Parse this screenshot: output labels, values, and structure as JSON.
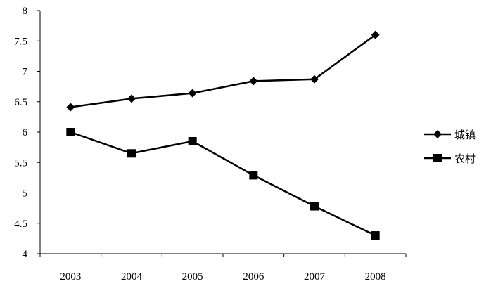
{
  "chart_data": {
    "type": "line",
    "title": "",
    "xlabel": "",
    "ylabel": "",
    "categories": [
      "2003",
      "2004",
      "2005",
      "2006",
      "2007",
      "2008"
    ],
    "ylim": [
      4,
      8
    ],
    "yticks": [
      "4",
      "4.5",
      "5",
      "5.5",
      "6",
      "6.5",
      "7",
      "7.5",
      "8"
    ],
    "grid": false,
    "legend_position": "right",
    "series": [
      {
        "name": "城镇",
        "marker": "diamond",
        "color": "#000000",
        "values": [
          6.41,
          6.55,
          6.64,
          6.84,
          6.87,
          7.6
        ]
      },
      {
        "name": "农村",
        "marker": "square",
        "color": "#000000",
        "values": [
          6.0,
          5.65,
          5.85,
          5.29,
          4.78,
          4.3
        ]
      }
    ]
  }
}
